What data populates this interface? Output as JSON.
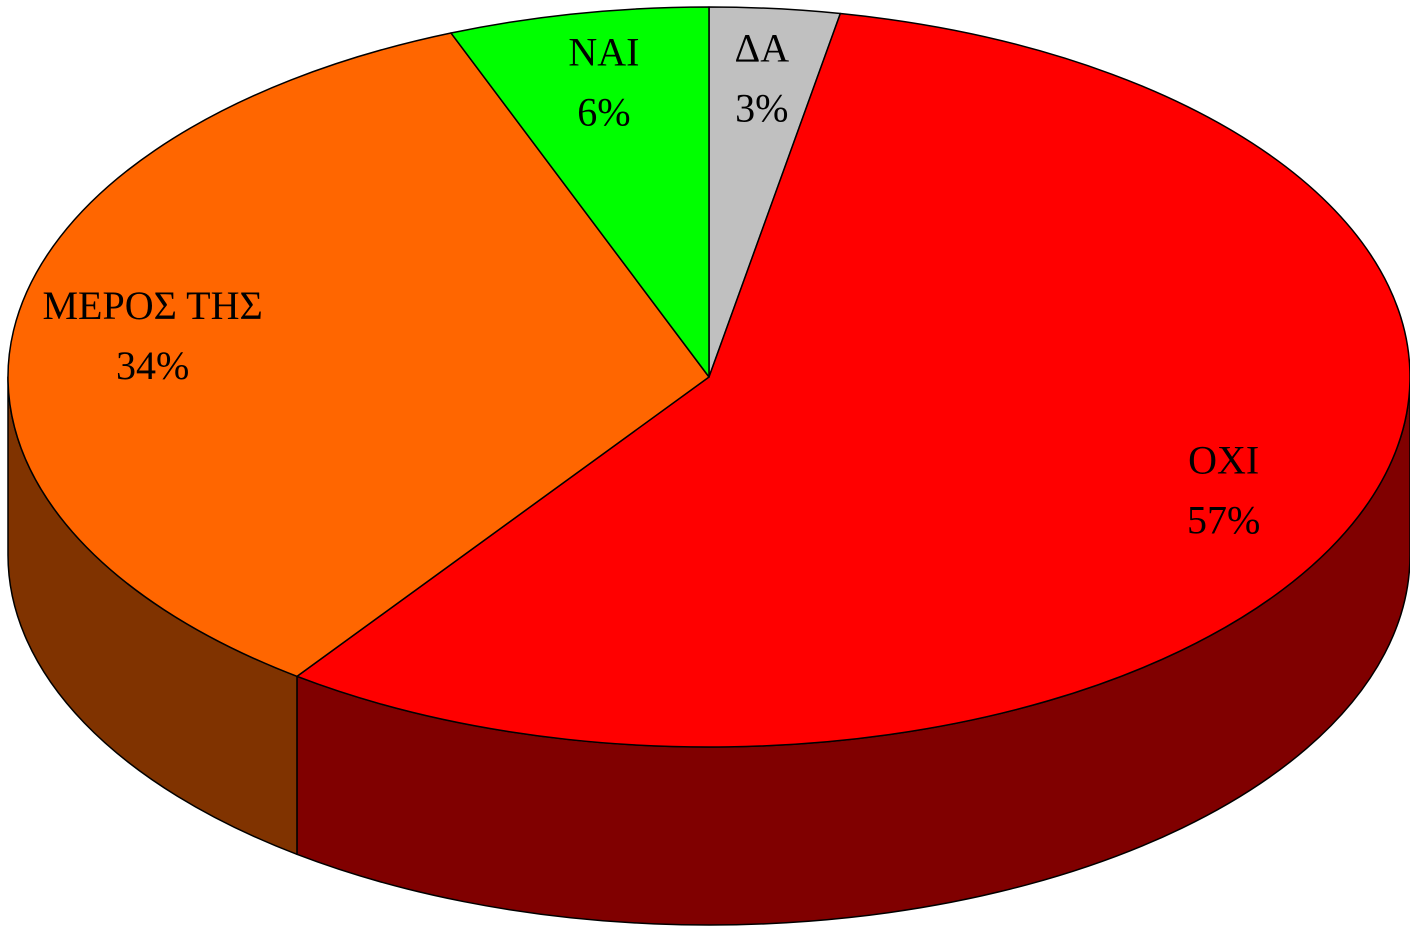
{
  "chart_data": {
    "type": "pie3d",
    "categories": [
      "ΔΑ",
      "ΟΧΙ",
      "ΜΕΡΟΣ ΤΗΣ",
      "ΝΑΙ"
    ],
    "values": [
      3,
      57,
      34,
      6
    ],
    "value_labels": [
      "3%",
      "57%",
      "34%",
      "6%"
    ],
    "colors": [
      "#c0c0c0",
      "#ff0000",
      "#ff6600",
      "#00ff00"
    ]
  }
}
